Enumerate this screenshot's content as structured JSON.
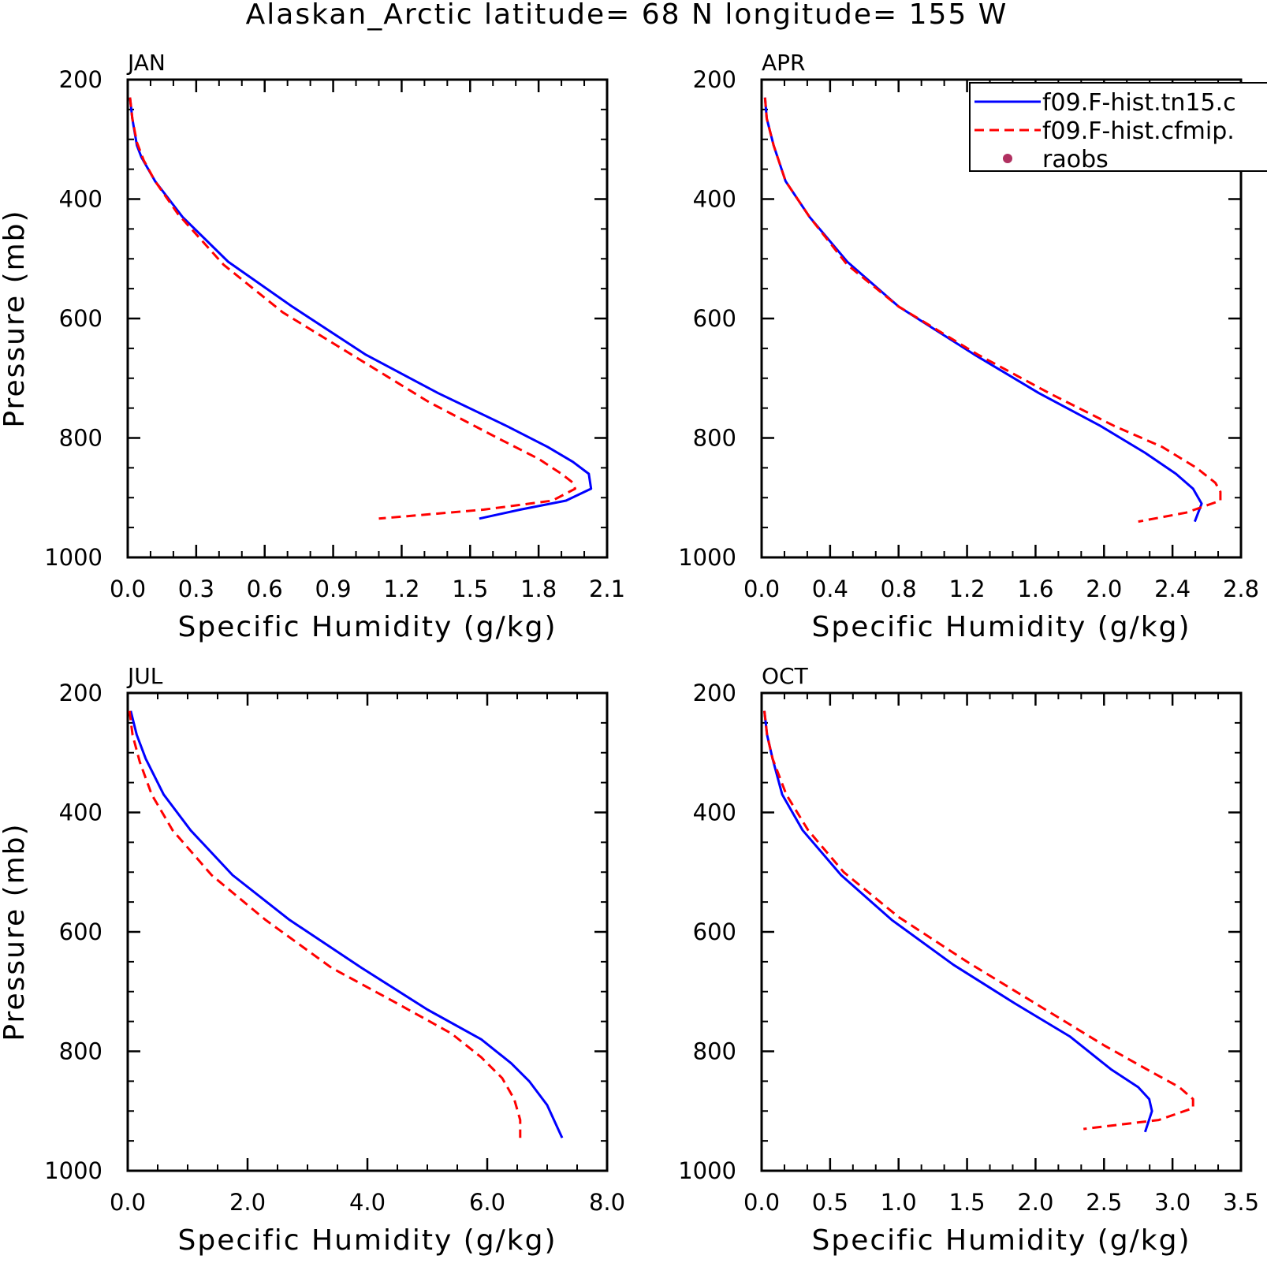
{
  "title": "Alaskan_Arctic  latitude= 68 N longitude= 155 W",
  "chart_data": [
    {
      "type": "line",
      "panel_label": "JAN",
      "xlabel": "Specific Humidity (g/kg)",
      "ylabel": "Pressure (mb)",
      "xlim": [
        0,
        2.1
      ],
      "ylim": [
        200,
        1000
      ],
      "y_inverted": true,
      "xticks": [
        "0.0",
        "0.3",
        "0.6",
        "0.9",
        "1.2",
        "1.5",
        "1.8",
        "2.1"
      ],
      "yticks": [
        "200",
        "400",
        "600",
        "800",
        "1000"
      ],
      "series": [
        {
          "name": "f09.F-hist.tn15.c",
          "color": "#0000ff",
          "style": "solid",
          "points": [
            [
              0.01,
              230
            ],
            [
              0.02,
              265
            ],
            [
              0.04,
              310
            ],
            [
              0.06,
              330
            ],
            [
              0.12,
              370
            ],
            [
              0.24,
              430
            ],
            [
              0.44,
              505
            ],
            [
              0.72,
              580
            ],
            [
              1.04,
              660
            ],
            [
              1.36,
              725
            ],
            [
              1.66,
              780
            ],
            [
              1.84,
              815
            ],
            [
              1.95,
              840
            ],
            [
              2.02,
              860
            ],
            [
              2.03,
              885
            ],
            [
              1.92,
              905
            ],
            [
              1.72,
              920
            ],
            [
              1.54,
              935
            ]
          ]
        },
        {
          "name": "f09.F-hist.cfmip.",
          "color": "#ff0000",
          "style": "dashed",
          "points": [
            [
              0.01,
              230
            ],
            [
              0.02,
              265
            ],
            [
              0.04,
              305
            ],
            [
              0.07,
              335
            ],
            [
              0.12,
              370
            ],
            [
              0.22,
              425
            ],
            [
              0.42,
              510
            ],
            [
              0.68,
              590
            ],
            [
              1.0,
              665
            ],
            [
              1.32,
              740
            ],
            [
              1.62,
              800
            ],
            [
              1.8,
              835
            ],
            [
              1.9,
              860
            ],
            [
              1.95,
              875
            ],
            [
              1.96,
              885
            ],
            [
              1.86,
              905
            ],
            [
              1.56,
              920
            ],
            [
              1.1,
              935
            ]
          ]
        }
      ]
    },
    {
      "type": "line",
      "panel_label": "APR",
      "xlabel": "Specific Humidity (g/kg)",
      "ylabel": "",
      "xlim": [
        0,
        2.8
      ],
      "ylim": [
        200,
        1000
      ],
      "y_inverted": true,
      "xticks": [
        "0.0",
        "0.4",
        "0.8",
        "1.2",
        "1.6",
        "2.0",
        "2.4",
        "2.8"
      ],
      "yticks": [
        "200",
        "400",
        "600",
        "800",
        "1000"
      ],
      "series": [
        {
          "name": "f09.F-hist.tn15.c",
          "color": "#0000ff",
          "style": "solid",
          "points": [
            [
              0.02,
              230
            ],
            [
              0.03,
              265
            ],
            [
              0.07,
              310
            ],
            [
              0.14,
              370
            ],
            [
              0.28,
              430
            ],
            [
              0.5,
              505
            ],
            [
              0.8,
              580
            ],
            [
              1.24,
              660
            ],
            [
              1.62,
              725
            ],
            [
              1.98,
              780
            ],
            [
              2.24,
              825
            ],
            [
              2.42,
              860
            ],
            [
              2.52,
              885
            ],
            [
              2.57,
              910
            ],
            [
              2.53,
              940
            ]
          ]
        },
        {
          "name": "f09.F-hist.cfmip.",
          "color": "#ff0000",
          "style": "dashed",
          "points": [
            [
              0.02,
              230
            ],
            [
              0.03,
              265
            ],
            [
              0.07,
              310
            ],
            [
              0.14,
              370
            ],
            [
              0.28,
              430
            ],
            [
              0.5,
              510
            ],
            [
              0.8,
              580
            ],
            [
              1.26,
              660
            ],
            [
              1.68,
              725
            ],
            [
              2.06,
              780
            ],
            [
              2.34,
              815
            ],
            [
              2.54,
              850
            ],
            [
              2.65,
              875
            ],
            [
              2.68,
              890
            ],
            [
              2.68,
              905
            ],
            [
              2.48,
              925
            ],
            [
              2.2,
              940
            ]
          ]
        }
      ]
    },
    {
      "type": "line",
      "panel_label": "JUL",
      "xlabel": "Specific Humidity (g/kg)",
      "ylabel": "Pressure (mb)",
      "xlim": [
        0,
        8
      ],
      "ylim": [
        200,
        1000
      ],
      "y_inverted": true,
      "xticks": [
        "0.0",
        "2.0",
        "4.0",
        "6.0",
        "8.0"
      ],
      "yticks": [
        "200",
        "400",
        "600",
        "800",
        "1000"
      ],
      "series": [
        {
          "name": "f09.F-hist.tn15.c",
          "color": "#0000ff",
          "style": "solid",
          "points": [
            [
              0.05,
              230
            ],
            [
              0.15,
              270
            ],
            [
              0.3,
              310
            ],
            [
              0.6,
              370
            ],
            [
              1.05,
              430
            ],
            [
              1.75,
              505
            ],
            [
              2.7,
              580
            ],
            [
              3.9,
              660
            ],
            [
              5.0,
              730
            ],
            [
              5.9,
              780
            ],
            [
              6.4,
              820
            ],
            [
              6.7,
              850
            ],
            [
              7.0,
              890
            ],
            [
              7.25,
              945
            ]
          ]
        },
        {
          "name": "f09.F-hist.cfmip.",
          "color": "#ff0000",
          "style": "dashed",
          "points": [
            [
              0.03,
              230
            ],
            [
              0.08,
              270
            ],
            [
              0.2,
              315
            ],
            [
              0.4,
              370
            ],
            [
              0.75,
              430
            ],
            [
              1.4,
              505
            ],
            [
              2.3,
              580
            ],
            [
              3.4,
              660
            ],
            [
              4.5,
              720
            ],
            [
              5.4,
              770
            ],
            [
              5.9,
              810
            ],
            [
              6.25,
              845
            ],
            [
              6.45,
              880
            ],
            [
              6.55,
              915
            ],
            [
              6.55,
              945
            ]
          ]
        }
      ]
    },
    {
      "type": "line",
      "panel_label": "OCT",
      "xlabel": "Specific Humidity (g/kg)",
      "ylabel": "",
      "xlim": [
        0,
        3.5
      ],
      "ylim": [
        200,
        1000
      ],
      "y_inverted": true,
      "xticks": [
        "0.0",
        "0.5",
        "1.0",
        "1.5",
        "2.0",
        "2.5",
        "3.0",
        "3.5"
      ],
      "yticks": [
        "200",
        "400",
        "600",
        "800",
        "1000"
      ],
      "series": [
        {
          "name": "f09.F-hist.tn15.c",
          "color": "#0000ff",
          "style": "solid",
          "points": [
            [
              0.02,
              230
            ],
            [
              0.04,
              270
            ],
            [
              0.08,
              310
            ],
            [
              0.15,
              370
            ],
            [
              0.3,
              430
            ],
            [
              0.58,
              505
            ],
            [
              0.95,
              580
            ],
            [
              1.4,
              655
            ],
            [
              1.85,
              720
            ],
            [
              2.25,
              775
            ],
            [
              2.55,
              830
            ],
            [
              2.75,
              860
            ],
            [
              2.83,
              880
            ],
            [
              2.85,
              900
            ],
            [
              2.8,
              935
            ]
          ]
        },
        {
          "name": "f09.F-hist.cfmip.",
          "color": "#ff0000",
          "style": "dashed",
          "points": [
            [
              0.02,
              230
            ],
            [
              0.04,
              270
            ],
            [
              0.08,
              310
            ],
            [
              0.18,
              370
            ],
            [
              0.34,
              430
            ],
            [
              0.6,
              500
            ],
            [
              1.0,
              575
            ],
            [
              1.5,
              650
            ],
            [
              2.0,
              720
            ],
            [
              2.5,
              790
            ],
            [
              2.85,
              835
            ],
            [
              3.05,
              860
            ],
            [
              3.15,
              880
            ],
            [
              3.15,
              895
            ],
            [
              2.9,
              915
            ],
            [
              2.35,
              930
            ]
          ]
        }
      ]
    }
  ],
  "legend": {
    "placement": "top-right of APR panel",
    "entries": [
      {
        "label": "f09.F-hist.tn15.c",
        "color": "#0000ff",
        "style": "solid"
      },
      {
        "label": "f09.F-hist.cfmip.",
        "color": "#ff0000",
        "style": "dashed"
      },
      {
        "label": "raobs",
        "color": "#b03060",
        "style": "marker"
      }
    ]
  }
}
